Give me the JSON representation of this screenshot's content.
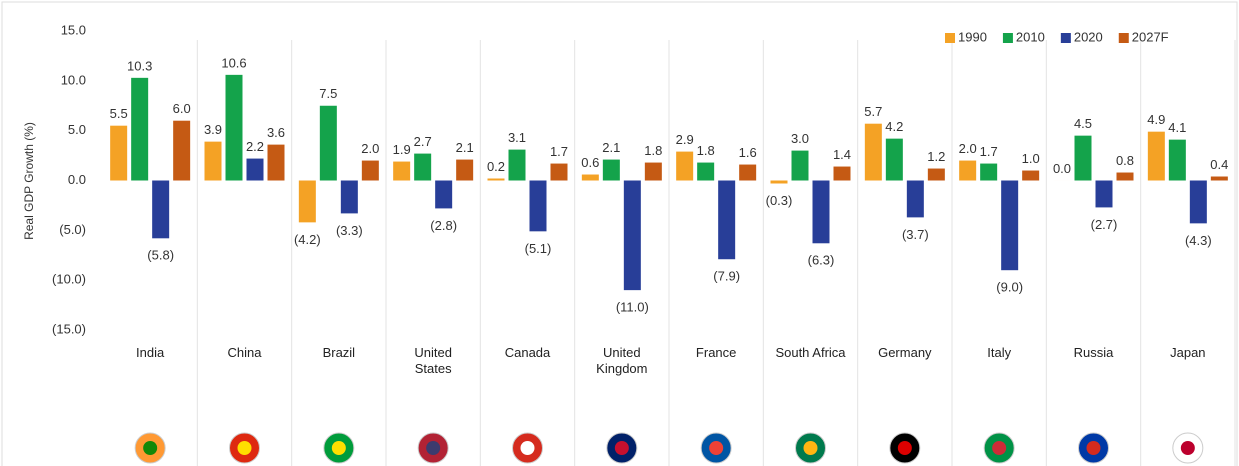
{
  "chart_data": {
    "type": "bar",
    "y_label": "Real GDP Growth (%)",
    "categories": [
      "India",
      "China",
      "Brazil",
      "United States",
      "Canada",
      "United Kingdom",
      "France",
      "South Africa",
      "Germany",
      "Italy",
      "Russia",
      "Japan"
    ],
    "series": [
      {
        "name": "1990",
        "color": "#f4a225",
        "values": [
          5.5,
          3.9,
          -4.2,
          1.9,
          0.2,
          0.6,
          2.9,
          -0.3,
          5.7,
          2.0,
          0.0,
          4.9
        ],
        "value_labels": [
          "5.5",
          "3.9",
          "(4.2)",
          "1.9",
          "0.2",
          "0.6",
          "2.9",
          "(0.3)",
          "5.7",
          "2.0",
          "0.0",
          "4.9"
        ]
      },
      {
        "name": "2010",
        "color": "#14a34b",
        "values": [
          10.3,
          10.6,
          7.5,
          2.7,
          3.1,
          2.1,
          1.8,
          3.0,
          4.2,
          1.7,
          4.5,
          4.1
        ],
        "value_labels": [
          "10.3",
          "10.6",
          "7.5",
          "2.7",
          "3.1",
          "2.1",
          "1.8",
          "3.0",
          "4.2",
          "1.7",
          "4.5",
          "4.1"
        ]
      },
      {
        "name": "2020",
        "color": "#283e98",
        "values": [
          -5.8,
          2.2,
          -3.3,
          -2.8,
          -5.1,
          -11.0,
          -7.9,
          -6.3,
          -3.7,
          -9.0,
          -2.7,
          -4.3
        ],
        "value_labels": [
          "(5.8)",
          "2.2",
          "(3.3)",
          "(2.8)",
          "(5.1)",
          "(11.0)",
          "(7.9)",
          "(6.3)",
          "(3.7)",
          "(9.0)",
          "(2.7)",
          "(4.3)"
        ]
      },
      {
        "name": "2027F",
        "color": "#c55a14",
        "values": [
          6.0,
          3.6,
          2.0,
          2.1,
          1.7,
          1.8,
          1.6,
          1.4,
          1.2,
          1.0,
          0.8,
          0.4
        ],
        "value_labels": [
          "6.0",
          "3.6",
          "2.0",
          "2.1",
          "1.7",
          "1.8",
          "1.6",
          "1.4",
          "1.2",
          "1.0",
          "0.8",
          "0.4"
        ]
      }
    ],
    "ylim": [
      -15,
      15
    ],
    "yticks": [
      {
        "value": 15,
        "label": "15.0"
      },
      {
        "value": 10,
        "label": "10.0"
      },
      {
        "value": 5,
        "label": "5.0"
      },
      {
        "value": 0,
        "label": "0.0"
      },
      {
        "value": -5,
        "label": "(5.0)"
      },
      {
        "value": -10,
        "label": "(10.0)"
      },
      {
        "value": -15,
        "label": "(15.0)"
      }
    ],
    "negative_color": "#ff2b2b",
    "legend": "top-right",
    "grid": false
  }
}
